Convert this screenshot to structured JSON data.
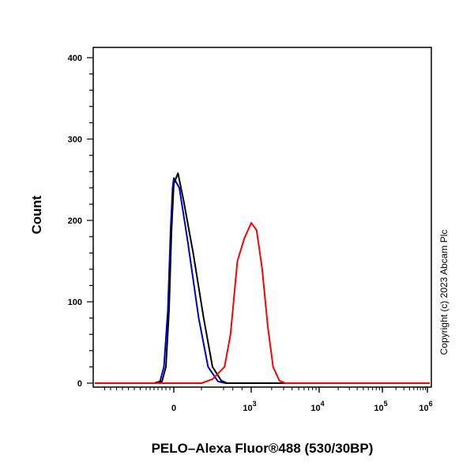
{
  "chart_data": {
    "type": "line",
    "xlabel": "PELO–Alexa Fluor®488 (530/30BP)",
    "ylabel": "Count",
    "ylim": [
      0,
      410
    ],
    "x_scale": "biexponential",
    "x_ticks": [
      {
        "value": 0,
        "label": "0"
      },
      {
        "value": 1000,
        "label": "10",
        "exp": "3"
      },
      {
        "value": 10000,
        "label": "10",
        "exp": "4"
      },
      {
        "value": 100000,
        "label": "10",
        "exp": "5"
      },
      {
        "value": 1000000,
        "label": "10",
        "exp": "6"
      }
    ],
    "y_ticks": [
      0,
      100,
      200,
      300,
      400
    ],
    "grid": false,
    "series": [
      {
        "color": "#0000cc",
        "x": [
          -500,
          -350,
          -250,
          -150,
          -80,
          -30,
          0,
          40,
          100,
          180,
          260,
          350,
          450
        ],
        "y": [
          0,
          2,
          20,
          90,
          190,
          240,
          252,
          240,
          175,
          80,
          20,
          2,
          0
        ]
      },
      {
        "color": "#000000",
        "x": [
          -450,
          -300,
          -200,
          -120,
          -60,
          0,
          30,
          70,
          140,
          220,
          300,
          380,
          480
        ],
        "y": [
          0,
          2,
          20,
          90,
          185,
          245,
          258,
          225,
          160,
          80,
          20,
          3,
          0
        ]
      },
      {
        "color": "#ff0000",
        "x": [
          200,
          300,
          420,
          550,
          700,
          850,
          1000,
          1200,
          1450,
          1750,
          2100,
          2600,
          3200
        ],
        "y": [
          0,
          5,
          20,
          60,
          150,
          178,
          197,
          188,
          140,
          70,
          20,
          3,
          0
        ]
      }
    ]
  },
  "watermark": "Copyright (c) 2023 Abcam Plc"
}
